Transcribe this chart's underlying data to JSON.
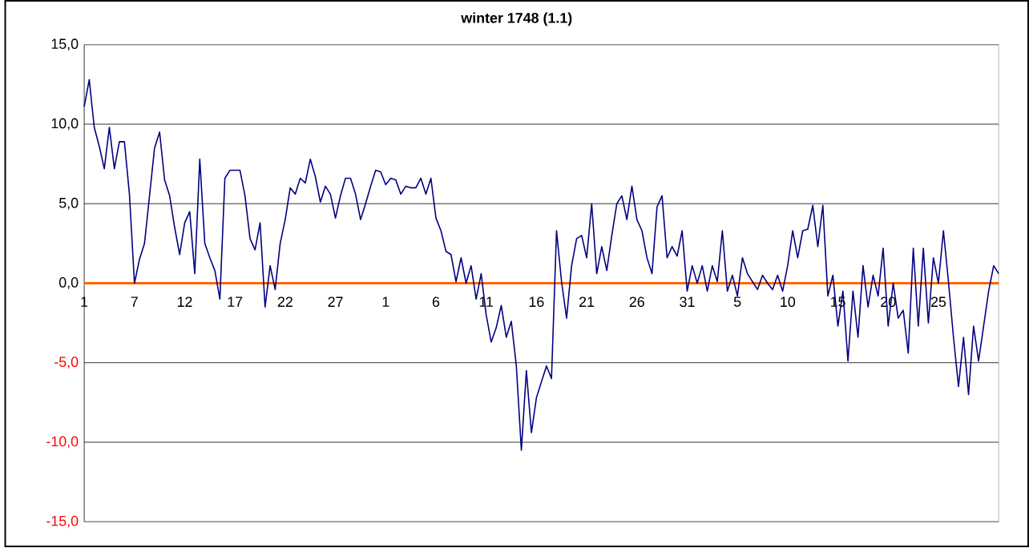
{
  "chart_data": {
    "type": "line",
    "title": "winter 1748 (1.1)",
    "categories": [
      "1",
      null,
      null,
      null,
      null,
      null,
      null,
      null,
      null,
      null,
      "7",
      null,
      null,
      null,
      null,
      null,
      null,
      null,
      null,
      null,
      "12",
      null,
      null,
      null,
      null,
      null,
      null,
      null,
      null,
      null,
      "17",
      null,
      null,
      null,
      null,
      null,
      null,
      null,
      null,
      null,
      "22",
      null,
      null,
      null,
      null,
      null,
      null,
      null,
      null,
      null,
      "27",
      null,
      null,
      null,
      null,
      null,
      null,
      null,
      null,
      null,
      "1",
      null,
      null,
      null,
      null,
      null,
      null,
      null,
      null,
      null,
      "6",
      null,
      null,
      null,
      null,
      null,
      null,
      null,
      null,
      null,
      "11",
      null,
      null,
      null,
      null,
      null,
      null,
      null,
      null,
      null,
      "16",
      null,
      null,
      null,
      null,
      null,
      null,
      null,
      null,
      null,
      "21",
      null,
      null,
      null,
      null,
      null,
      null,
      null,
      null,
      null,
      "26",
      null,
      null,
      null,
      null,
      null,
      null,
      null,
      null,
      null,
      "31",
      null,
      null,
      null,
      null,
      null,
      null,
      null,
      null,
      null,
      "5",
      null,
      null,
      null,
      null,
      null,
      null,
      null,
      null,
      null,
      "10",
      null,
      null,
      null,
      null,
      null,
      null,
      null,
      null,
      null,
      "15",
      null,
      null,
      null,
      null,
      null,
      null,
      null,
      null,
      null,
      "20",
      null,
      null,
      null,
      null,
      null,
      null,
      null,
      null,
      null,
      "25",
      null,
      null,
      null,
      null,
      null,
      null,
      null,
      null,
      null,
      null,
      null,
      null
    ],
    "series": [
      {
        "color": "#000080",
        "values": [
          11.1,
          12.8,
          9.8,
          8.6,
          7.2,
          9.8,
          7.2,
          8.9,
          8.9,
          5.6,
          0,
          1.5,
          2.5,
          5.5,
          8.5,
          9.5,
          6.5,
          5.5,
          3.5,
          1.8,
          3.8,
          4.5,
          0.6,
          7.8,
          2.5,
          1.6,
          0.8,
          -1.0,
          6.6,
          7.1,
          7.1,
          7.1,
          5.5,
          2.8,
          2.1,
          3.8,
          -1.5,
          1.1,
          -0.4,
          2.5,
          4.0,
          6.0,
          5.6,
          6.6,
          6.3,
          7.8,
          6.7,
          5.1,
          6.1,
          5.6,
          4.1,
          5.5,
          6.6,
          6.6,
          5.6,
          4.0,
          5.0,
          6.1,
          7.1,
          7.0,
          6.2,
          6.6,
          6.5,
          5.6,
          6.1,
          6.0,
          6.0,
          6.6,
          5.6,
          6.6,
          4.1,
          3.3,
          2.0,
          1.8,
          0.1,
          1.6,
          0,
          1.1,
          -1.0,
          0.6,
          -2.0,
          -3.7,
          -2.8,
          -1.4,
          -3.4,
          -2.4,
          -5.2,
          -10.5,
          -5.5,
          -9.4,
          -7.2,
          -6.2,
          -5.2,
          -6.0,
          3.3,
          0.1,
          -2.2,
          1.1,
          2.8,
          3.0,
          1.6,
          5.0,
          0.6,
          2.3,
          0.8,
          3.0,
          5.0,
          5.5,
          4.0,
          6.1,
          4.0,
          3.3,
          1.6,
          0.6,
          4.8,
          5.5,
          1.6,
          2.3,
          1.7,
          3.3,
          -0.5,
          1.1,
          0,
          1.1,
          -0.5,
          1.1,
          0.1,
          3.3,
          -0.5,
          0.5,
          -0.8,
          1.6,
          0.6,
          0.1,
          -0.4,
          0.5,
          0,
          -0.4,
          0.5,
          -0.5,
          1.1,
          3.3,
          1.6,
          3.3,
          3.4,
          4.9,
          2.3,
          4.9,
          -0.8,
          0.5,
          -2.7,
          -0.5,
          -4.9,
          -0.5,
          -3.4,
          1.1,
          -1.5,
          0.5,
          -0.8,
          2.2,
          -2.7,
          0,
          -2.2,
          -1.7,
          -4.4,
          2.2,
          -2.7,
          2.2,
          -2.5,
          1.6,
          0,
          3.3,
          0.1,
          -3.4,
          -6.5,
          -3.4,
          -7.0,
          -2.7,
          -4.9,
          -2.7,
          -0.5,
          1.1,
          0.6
        ]
      }
    ],
    "ylim": [
      -15,
      15
    ],
    "yticks": [
      {
        "value": -15,
        "label": "-15,0"
      },
      {
        "value": -10,
        "label": "-10,0"
      },
      {
        "value": -5,
        "label": "-5,0"
      },
      {
        "value": 0,
        "label": "0,0"
      },
      {
        "value": 5,
        "label": "5,0"
      },
      {
        "value": 10,
        "label": "10,0"
      },
      {
        "value": 15,
        "label": "15,0"
      }
    ],
    "grid": "y",
    "marker": "none",
    "line_style": "solid"
  }
}
